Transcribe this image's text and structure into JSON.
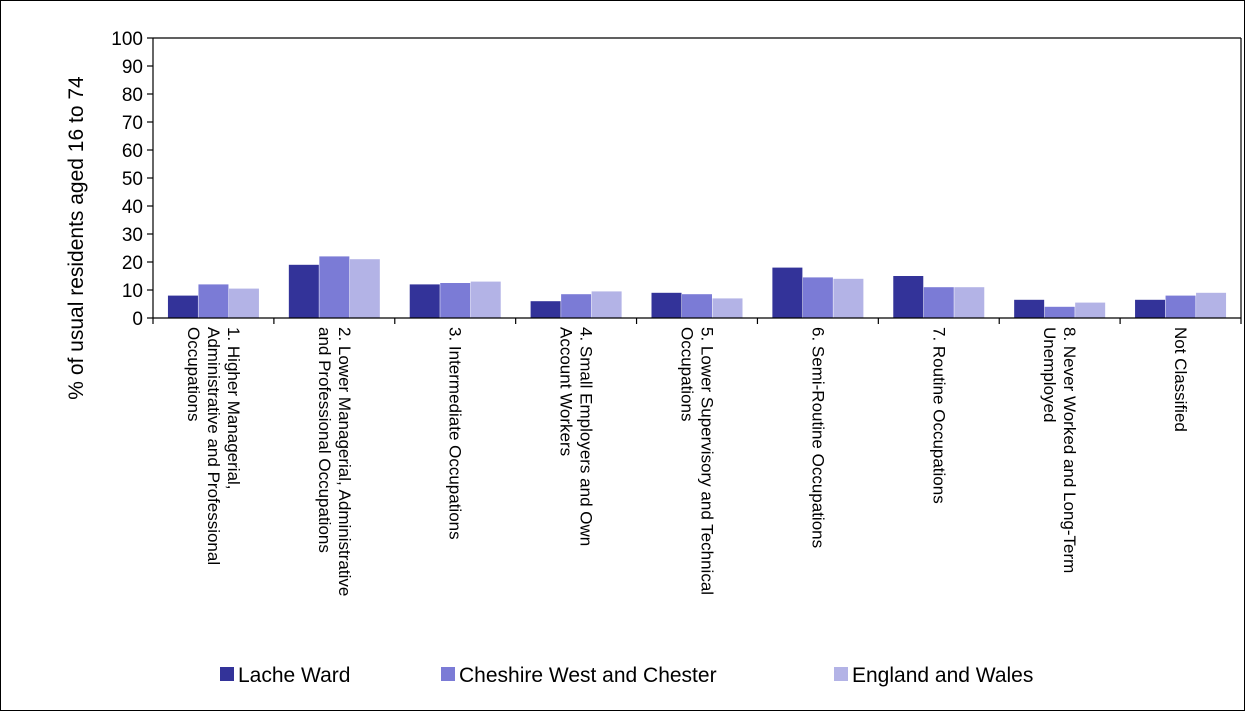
{
  "chart_data": {
    "type": "bar",
    "ylabel": "% of usual residents aged 16 to 74",
    "xlabel": "",
    "ylim": [
      0,
      100
    ],
    "yticks": [
      0,
      10,
      20,
      30,
      40,
      50,
      60,
      70,
      80,
      90,
      100
    ],
    "grid": false,
    "legend_position": "bottom",
    "categories": [
      [
        "1. Higher Managerial,",
        "Administrative and Professional",
        "Occupations"
      ],
      [
        "2. Lower Managerial, Administrative",
        "and Professional Occupations"
      ],
      [
        "3. Intermediate Occupations"
      ],
      [
        "4. Small Employers and Own",
        "Account Workers"
      ],
      [
        "5. Lower Supervisory and Technical",
        "Occupations"
      ],
      [
        "6. Semi-Routine Occupations"
      ],
      [
        "7. Routine Occupations"
      ],
      [
        "8. Never Worked and Long-Term",
        "Unemployed"
      ],
      [
        "Not Classified"
      ]
    ],
    "series": [
      {
        "name": "Lache Ward",
        "color": "#333399",
        "values": [
          8,
          19,
          12,
          6,
          9,
          18,
          15,
          6.5,
          6.5
        ]
      },
      {
        "name": "Cheshire West and Chester",
        "color": "#7b7bd6",
        "values": [
          12,
          22,
          12.5,
          8.5,
          8.5,
          14.5,
          11,
          4,
          8
        ]
      },
      {
        "name": "England and Wales",
        "color": "#b3b3e6",
        "values": [
          10.5,
          21,
          13,
          9.5,
          7,
          14,
          11,
          5.5,
          9
        ]
      }
    ]
  }
}
